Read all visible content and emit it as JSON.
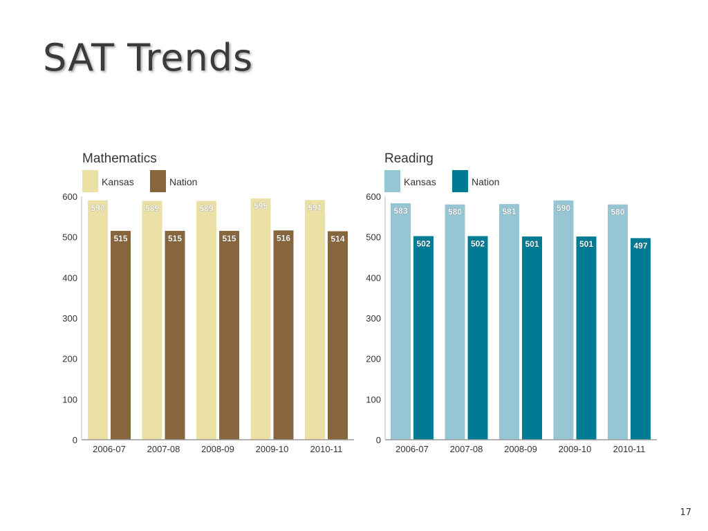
{
  "slide": {
    "title": "SAT Trends",
    "page_number": "17"
  },
  "chart_data": [
    {
      "type": "bar",
      "title": "Mathematics",
      "categories": [
        "2006-07",
        "2007-08",
        "2008-09",
        "2009-10",
        "2010-11"
      ],
      "series": [
        {
          "name": "Kansas",
          "values": [
            590,
            589,
            589,
            595,
            591
          ],
          "color": "#ebe1a6"
        },
        {
          "name": "Nation",
          "values": [
            515,
            515,
            515,
            516,
            514
          ],
          "color": "#87663d"
        }
      ],
      "ylim": [
        0,
        600
      ],
      "yticks": [
        0,
        100,
        200,
        300,
        400,
        500,
        600
      ],
      "legend": "top-left",
      "grid": false
    },
    {
      "type": "bar",
      "title": "Reading",
      "categories": [
        "2006-07",
        "2007-08",
        "2008-09",
        "2009-10",
        "2010-11"
      ],
      "series": [
        {
          "name": "Kansas",
          "values": [
            583,
            580,
            581,
            590,
            580
          ],
          "color": "#96c6d3"
        },
        {
          "name": "Nation",
          "values": [
            502,
            502,
            501,
            501,
            497
          ],
          "color": "#007b94"
        }
      ],
      "ylim": [
        0,
        600
      ],
      "yticks": [
        0,
        100,
        200,
        300,
        400,
        500,
        600
      ],
      "legend": "top-left",
      "grid": false
    }
  ]
}
